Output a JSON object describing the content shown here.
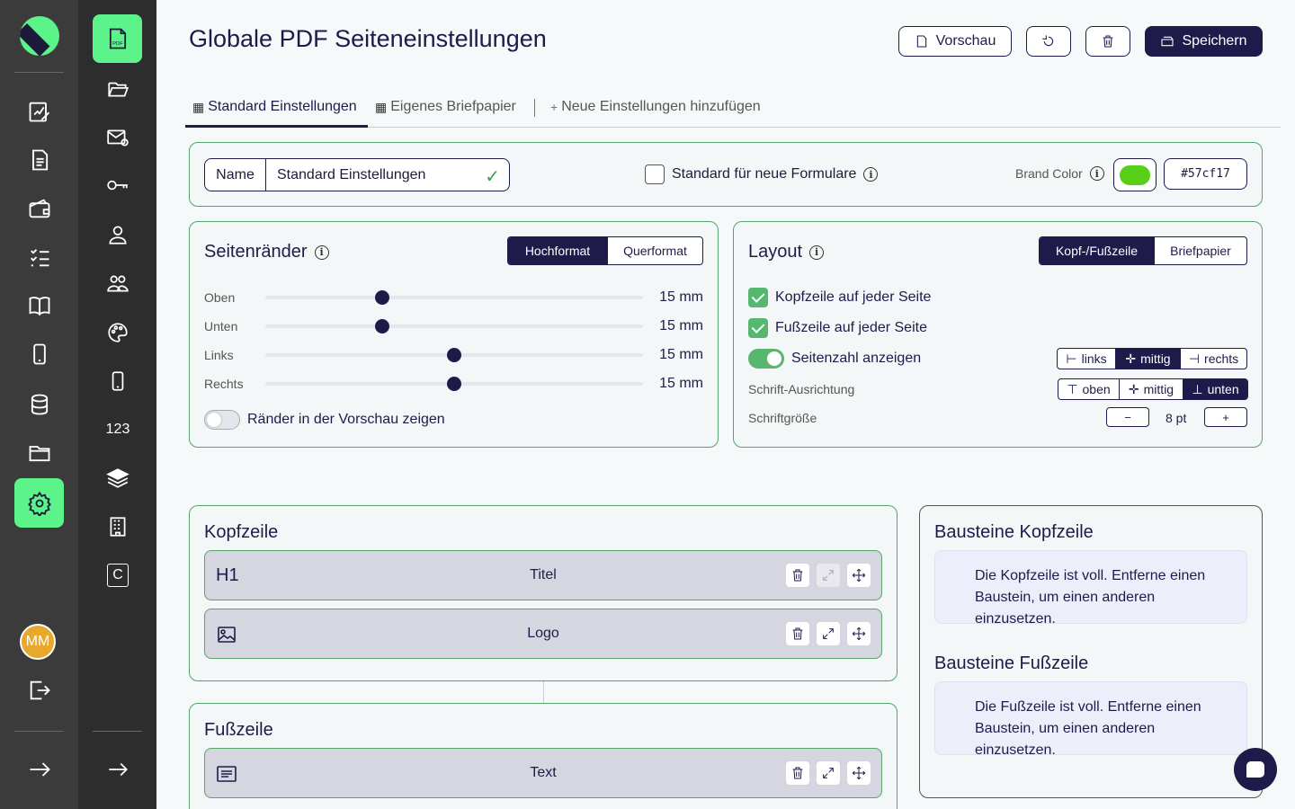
{
  "user": {
    "initials": "MM"
  },
  "page": {
    "title": "Globale PDF Seiteneinstellungen"
  },
  "header": {
    "preview_label": "Vorschau",
    "save_label": "Speichern"
  },
  "tabs": [
    {
      "label": "Standard Einstellungen"
    },
    {
      "label": "Eigenes Briefpapier"
    },
    {
      "label": "Neue Einstellungen hinzufügen"
    }
  ],
  "rail2": {
    "counter_label": "123",
    "c_label": "C"
  },
  "settings": {
    "name_label": "Name",
    "name_value": "Standard Einstellungen",
    "default_label": "Standard für neue Formulare",
    "default_checked": false,
    "brand_label": "Brand Color",
    "brand_color": "#57cf17",
    "brand_hex": "#57cf17"
  },
  "margins": {
    "title": "Seitenränder",
    "orientation": {
      "options": [
        "Hochformat",
        "Querformat"
      ],
      "selected": "Hochformat"
    },
    "rows": [
      {
        "label": "Oben",
        "value": "15 mm",
        "position": 0.31
      },
      {
        "label": "Unten",
        "value": "15 mm",
        "position": 0.31
      },
      {
        "label": "Links",
        "value": "15 mm",
        "position": 0.5
      },
      {
        "label": "Rechts",
        "value": "15 mm",
        "position": 0.5
      }
    ],
    "preview_toggle_label": "Ränder in der Vorschau zeigen",
    "preview_toggle_on": false
  },
  "layout": {
    "title": "Layout",
    "mode": {
      "options": [
        "Kopf-/Fußzeile",
        "Briefpapier"
      ],
      "selected": "Kopf-/Fußzeile"
    },
    "header_each_page": "Kopfzeile auf jeder Seite",
    "footer_each_page": "Fußzeile auf jeder Seite",
    "show_page_number": "Seitenzahl anzeigen",
    "h_align": {
      "options": [
        "links",
        "mittig",
        "rechts"
      ],
      "selected": "mittig"
    },
    "font_align_label": "Schrift-Ausrichtung",
    "v_align": {
      "options": [
        "oben",
        "mittig",
        "unten"
      ],
      "selected": "unten"
    },
    "font_size_label": "Schriftgröße",
    "font_size_value": "8 pt",
    "minus": "−",
    "plus": "+"
  },
  "kopfzeile": {
    "title": "Kopfzeile",
    "blocks": [
      {
        "icon": "H1",
        "label": "Titel"
      },
      {
        "icon": "image-icon",
        "label": "Logo"
      }
    ]
  },
  "fusszeile": {
    "title": "Fußzeile",
    "blocks": [
      {
        "icon": "text-icon",
        "label": "Text"
      }
    ]
  },
  "bausteine": {
    "kopf_title": "Bausteine Kopfzeile",
    "kopf_text": "Die Kopfzeile ist voll. Entferne einen Baustein, um einen anderen einzusetzen.",
    "fuss_title": "Bausteine Fußzeile",
    "fuss_text": "Die Fußzeile ist voll. Entferne einen Baustein, um einen anderen einzusetzen."
  },
  "colors": {
    "accent": "#5cf38a",
    "primary": "#1e1b4b",
    "success": "#57b76e",
    "border": "#57a36a"
  }
}
